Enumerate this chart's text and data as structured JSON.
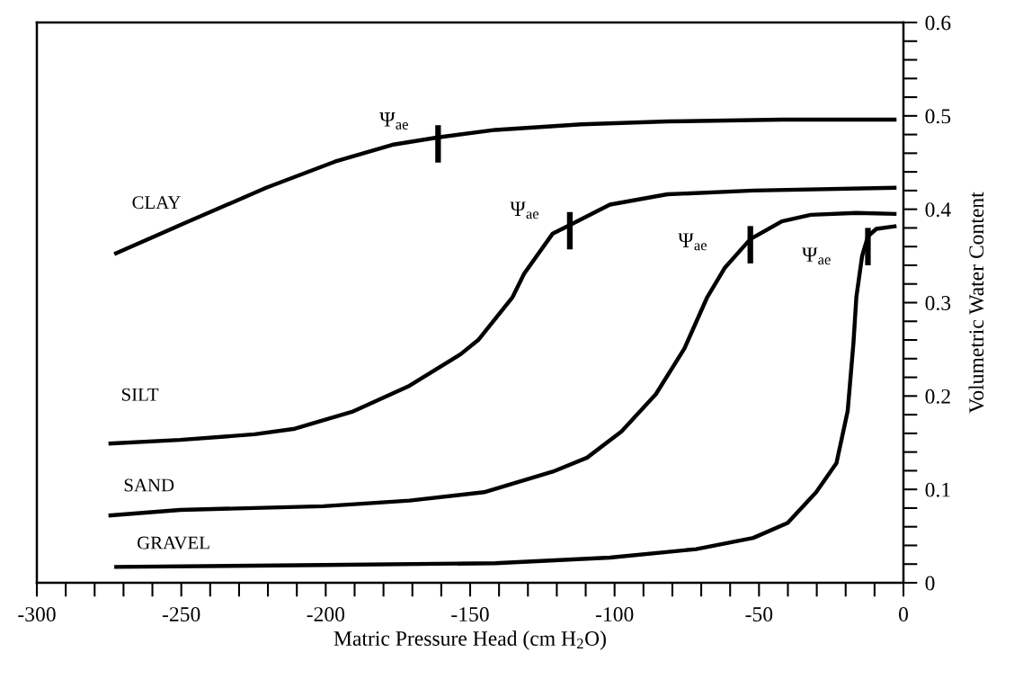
{
  "chart_data": {
    "type": "line",
    "xlabel": "Matric Pressure Head (cm H$_{2}$O)",
    "ylabel": "Volumetric Water Content",
    "xlim": [
      -300,
      0
    ],
    "ylim": [
      0,
      0.6
    ],
    "xticks": [
      -300,
      {
        "value": -290,
        "label": null
      },
      {
        "value": -280,
        "label": null
      },
      {
        "value": -270,
        "label": null
      },
      {
        "value": -260,
        "label": null
      },
      -250,
      {
        "value": -240,
        "label": null
      },
      {
        "value": -230,
        "label": null
      },
      {
        "value": -220,
        "label": null
      },
      {
        "value": -210,
        "label": null
      },
      -200,
      {
        "value": -190,
        "label": null
      },
      {
        "value": -180,
        "label": null
      },
      {
        "value": -170,
        "label": null
      },
      {
        "value": -160,
        "label": null
      },
      -150,
      {
        "value": -140,
        "label": null
      },
      {
        "value": -130,
        "label": null
      },
      {
        "value": -120,
        "label": null
      },
      {
        "value": -110,
        "label": null
      },
      -100,
      {
        "value": -90,
        "label": null
      },
      {
        "value": -80,
        "label": null
      },
      {
        "value": -70,
        "label": null
      },
      {
        "value": -60,
        "label": null
      },
      -50,
      {
        "value": -40,
        "label": null
      },
      {
        "value": -30,
        "label": null
      },
      {
        "value": -20,
        "label": null
      },
      {
        "value": -10,
        "label": null
      },
      0
    ],
    "yticks": [
      0,
      {
        "value": 0.02,
        "label": null
      },
      {
        "value": 0.04,
        "label": null
      },
      {
        "value": 0.06,
        "label": null
      },
      {
        "value": 0.08,
        "label": null
      },
      0.1,
      {
        "value": 0.12,
        "label": null
      },
      {
        "value": 0.14,
        "label": null
      },
      {
        "value": 0.16,
        "label": null
      },
      {
        "value": 0.18,
        "label": null
      },
      0.2,
      {
        "value": 0.22,
        "label": null
      },
      {
        "value": 0.24,
        "label": null
      },
      {
        "value": 0.26,
        "label": null
      },
      {
        "value": 0.28,
        "label": null
      },
      0.3,
      {
        "value": 0.32,
        "label": null
      },
      {
        "value": 0.34,
        "label": null
      },
      {
        "value": 0.36,
        "label": null
      },
      {
        "value": 0.38,
        "label": null
      },
      0.4,
      {
        "value": 0.42,
        "label": null
      },
      {
        "value": 0.44,
        "label": null
      },
      {
        "value": 0.46,
        "label": null
      },
      {
        "value": 0.48,
        "label": null
      },
      0.5,
      {
        "value": 0.52,
        "label": null
      },
      {
        "value": 0.54,
        "label": null
      },
      {
        "value": 0.56,
        "label": null
      },
      {
        "value": 0.58,
        "label": null
      },
      0.6
    ],
    "grid": false,
    "legend": false,
    "marker": "none",
    "line_style": "solid",
    "series": [
      {
        "name": "CLAY",
        "color": "#000000",
        "x": [
          -273.2,
          -250.4,
          -220.6,
          -196.8,
          -177,
          -161.1,
          -141.3,
          -111.5,
          -81.7,
          -42.1,
          -2.4
        ],
        "values": [
          0.352,
          0.383,
          0.423,
          0.451,
          0.469,
          0.477,
          0.485,
          0.491,
          0.494,
          0.496,
          0.496
        ]
      },
      {
        "name": "SILT",
        "color": "#000000",
        "x": [
          -275.2,
          -250.4,
          -224.6,
          -210.7,
          -190.9,
          -171,
          -153.2,
          -147.2,
          -135.3,
          -131.3,
          -121.4,
          -115.5,
          -101.6,
          -81.7,
          -52,
          -2.4
        ],
        "values": [
          0.149,
          0.153,
          0.159,
          0.165,
          0.183,
          0.211,
          0.245,
          0.26,
          0.306,
          0.331,
          0.374,
          0.383,
          0.405,
          0.416,
          0.42,
          0.423
        ]
      },
      {
        "name": "SAND",
        "color": "#000000",
        "x": [
          -275.2,
          -250.4,
          -200.8,
          -171,
          -145.2,
          -121.4,
          -109.5,
          -97.6,
          -85.7,
          -75.8,
          -67.9,
          -61.9,
          -53,
          -42.1,
          -32.1,
          -16.3,
          -2.4
        ],
        "values": [
          0.072,
          0.078,
          0.082,
          0.088,
          0.097,
          0.119,
          0.134,
          0.162,
          0.202,
          0.251,
          0.306,
          0.337,
          0.368,
          0.387,
          0.394,
          0.396,
          0.395
        ]
      },
      {
        "name": "GRAVEL",
        "color": "#000000",
        "x": [
          -273.2,
          -200.8,
          -141.3,
          -101.6,
          -71.8,
          -52,
          -40.1,
          -30.2,
          -23.2,
          -19.3,
          -17.3,
          -16.3,
          -14.3,
          -12.3,
          -9.4,
          -2.4
        ],
        "values": [
          0.017,
          0.019,
          0.021,
          0.027,
          0.036,
          0.048,
          0.064,
          0.097,
          0.128,
          0.184,
          0.257,
          0.306,
          0.35,
          0.371,
          0.379,
          0.382
        ]
      }
    ],
    "annotations": [
      {
        "text": "Ψ$_{ae}$",
        "x": -161.1,
        "y": 0.47
      },
      {
        "text": "Ψ$_{ae}$",
        "x": -115.5,
        "y": 0.377
      },
      {
        "text": "Ψ$_{ae}$",
        "x": -53,
        "y": 0.362
      },
      {
        "text": "Ψ$_{ae}$",
        "x": -12.3,
        "y": 0.36
      }
    ]
  }
}
